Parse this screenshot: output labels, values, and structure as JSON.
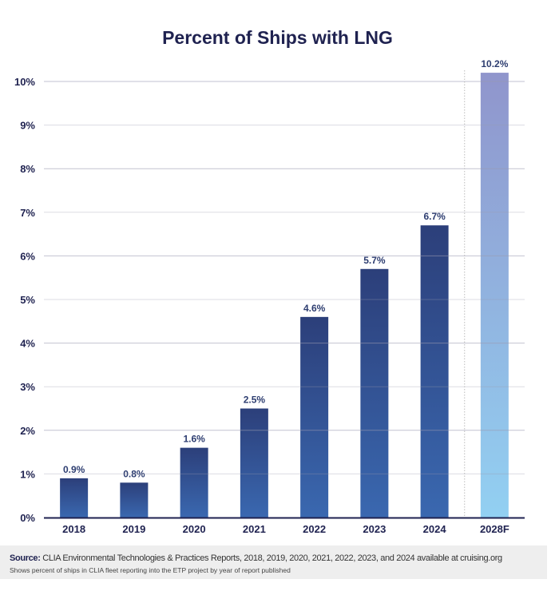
{
  "chart_data": {
    "type": "bar",
    "title": "Percent of Ships with LNG",
    "categories": [
      "2018",
      "2019",
      "2020",
      "2021",
      "2022",
      "2023",
      "2024",
      "2028F"
    ],
    "values": [
      0.9,
      0.8,
      1.6,
      2.5,
      4.6,
      5.7,
      6.7,
      10.2
    ],
    "value_labels": [
      "0.9%",
      "0.8%",
      "1.6%",
      "2.5%",
      "4.6%",
      "5.7%",
      "6.7%",
      "10.2%"
    ],
    "forecast_categories": [
      "2028F"
    ],
    "ylim": [
      0,
      10
    ],
    "yticks": [
      0,
      1,
      2,
      3,
      4,
      5,
      6,
      7,
      8,
      9,
      10
    ],
    "ytick_labels": [
      "0%",
      "1%",
      "2%",
      "3%",
      "4%",
      "5%",
      "6%",
      "7%",
      "8%",
      "9%",
      "10%"
    ],
    "grid": true,
    "colors": {
      "actual_top": "#2c3f7a",
      "actual_bottom": "#3a68b0",
      "forecast_top": "#9095cc",
      "forecast_bottom": "#92d0f2",
      "label": "#2d3d70"
    }
  },
  "footer": {
    "source_label": "Source:",
    "source_text": " CLIA Environmental Technologies & Practices Reports, 2018, 2019, 2020, 2021, 2022, 2023, and 2024 available at cruising.org",
    "note": "Shows percent of ships in CLIA fleet reporting into the ETP project by year of report published"
  }
}
